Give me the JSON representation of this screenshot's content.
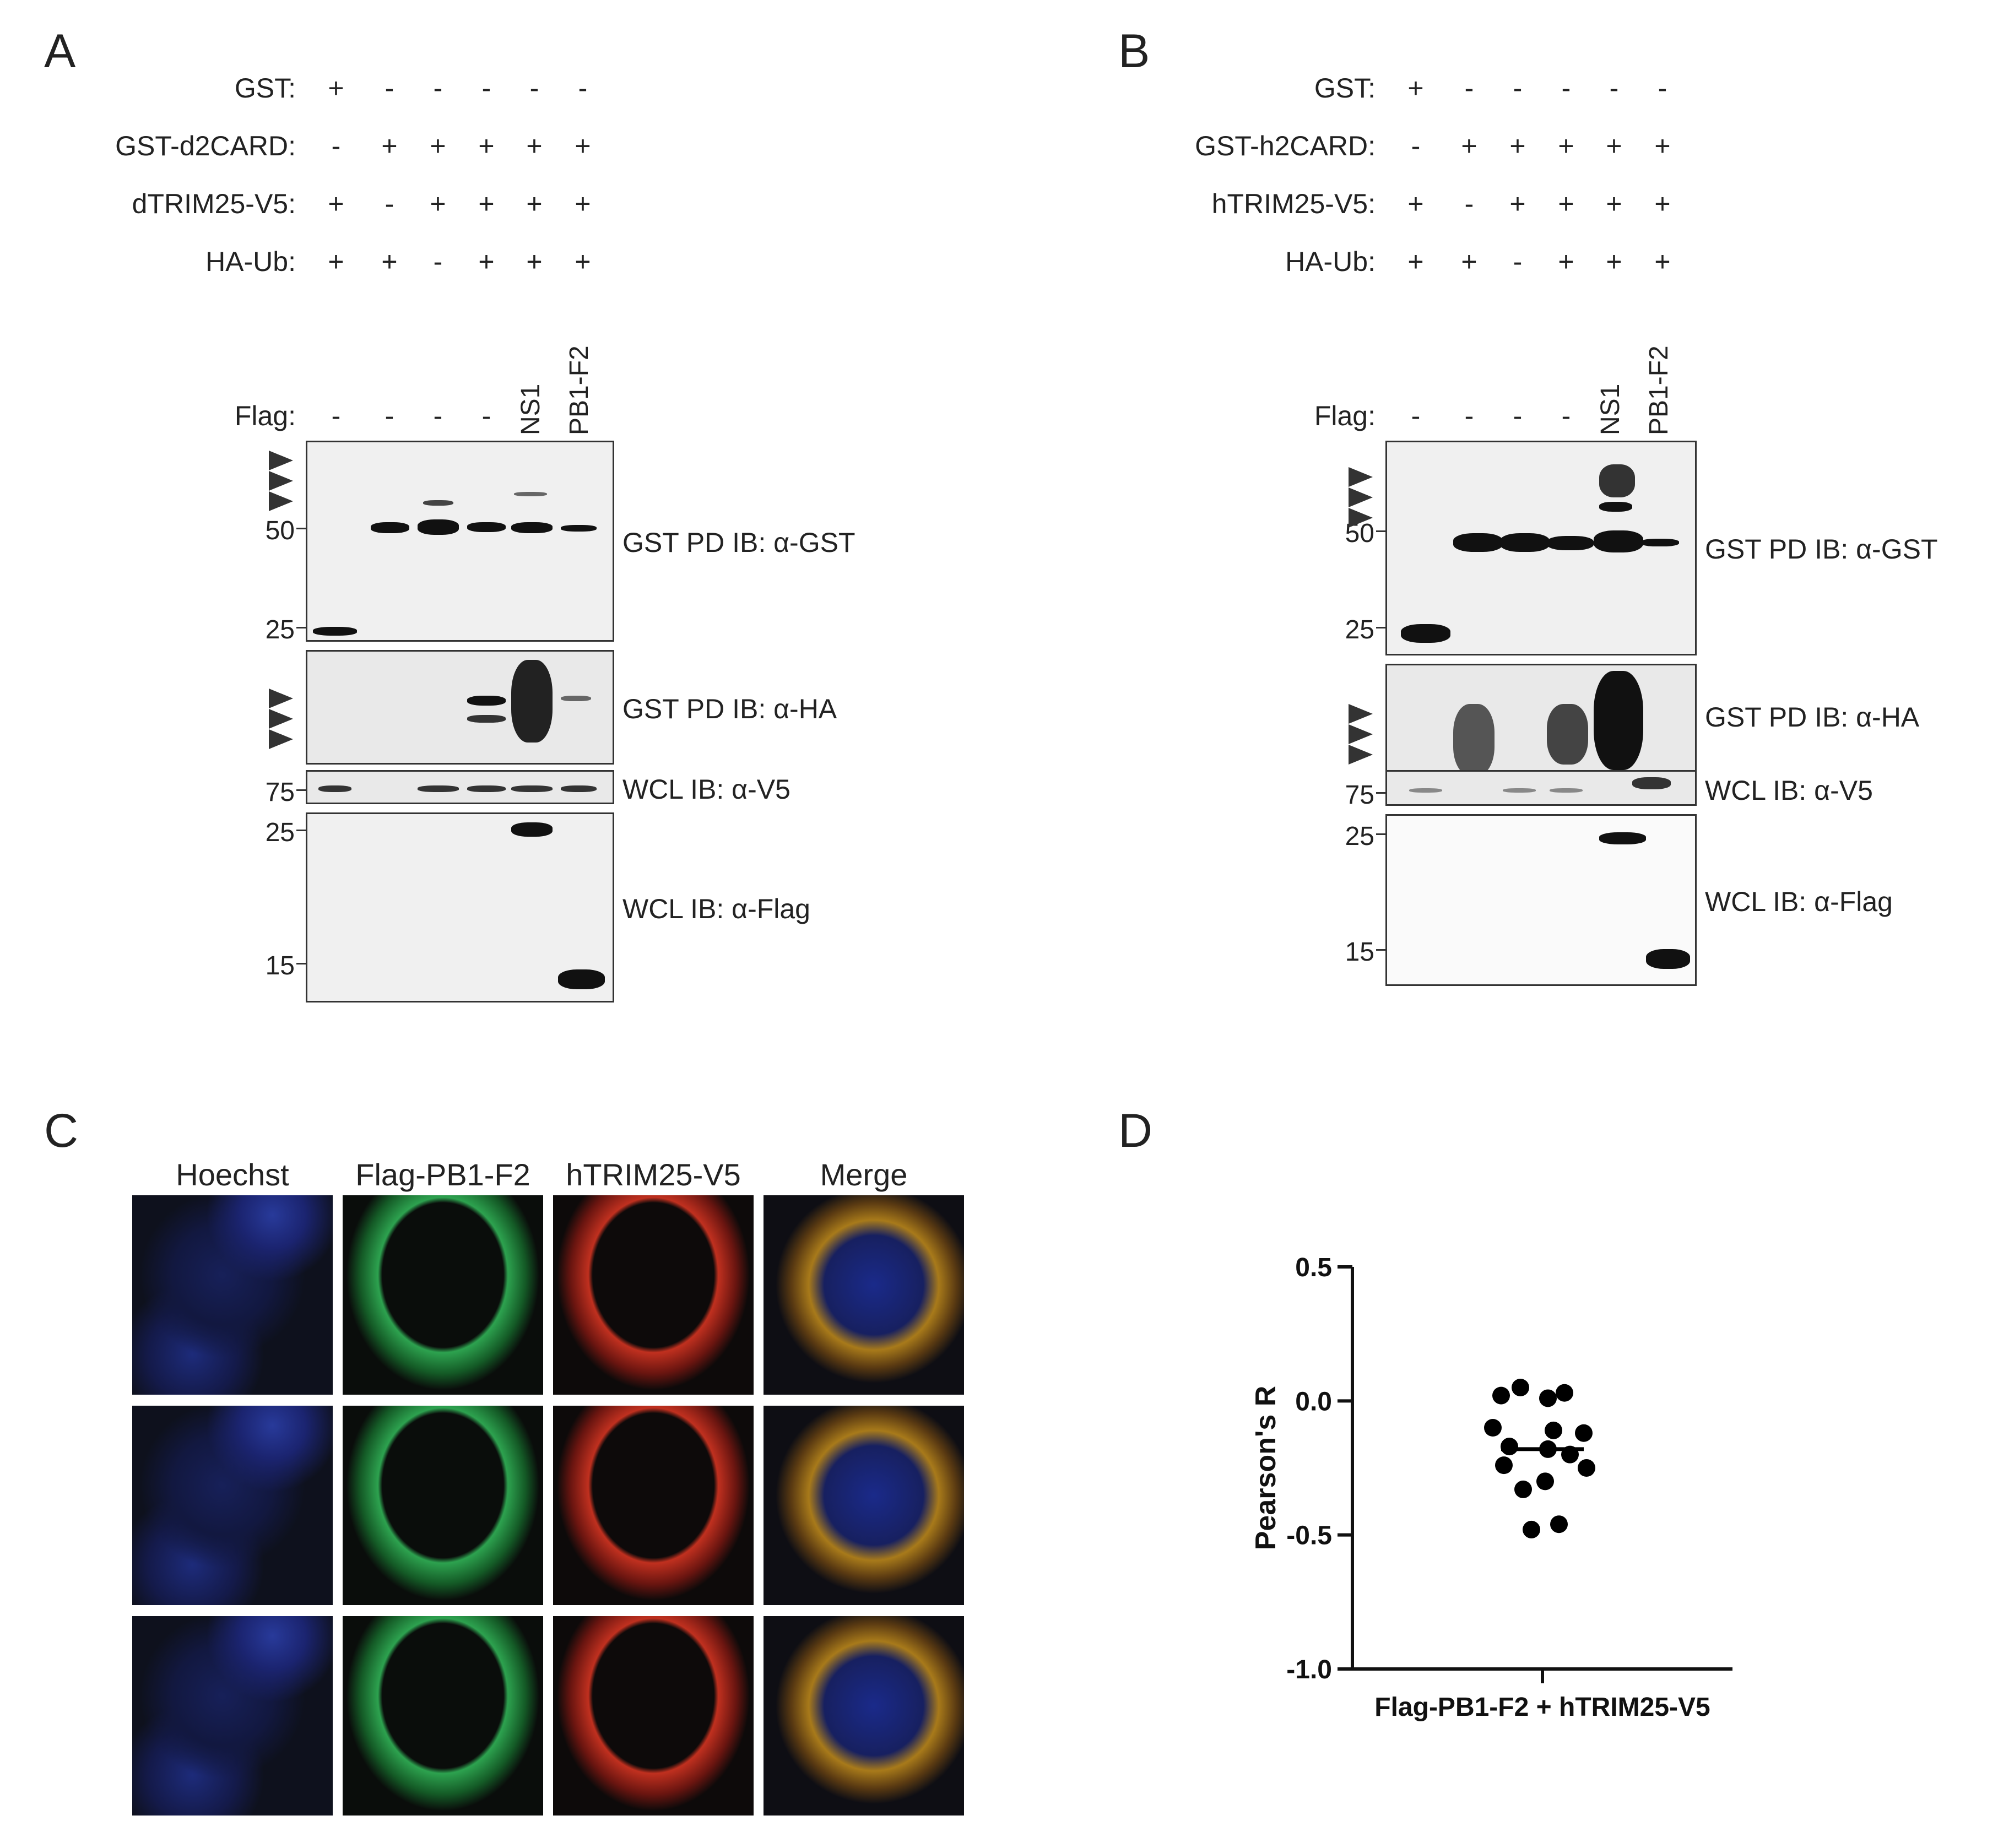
{
  "panels": {
    "A": "A",
    "B": "B",
    "C": "C",
    "D": "D"
  },
  "panelA": {
    "rows": [
      {
        "label": "GST:",
        "values": [
          "+",
          "-",
          "-",
          "-",
          "-",
          "-"
        ]
      },
      {
        "label": "GST-d2CARD:",
        "values": [
          "-",
          "+",
          "+",
          "+",
          "+",
          "+"
        ]
      },
      {
        "label": "dTRIM25-V5:",
        "values": [
          "+",
          "-",
          "+",
          "+",
          "+",
          "+"
        ]
      },
      {
        "label": "HA-Ub:",
        "values": [
          "+",
          "+",
          "-",
          "+",
          "+",
          "+"
        ]
      }
    ],
    "flag": {
      "label": "Flag:",
      "values": [
        "-",
        "-",
        "-",
        "-",
        "NS1",
        "PB1-F2"
      ]
    },
    "blots": [
      {
        "label": "GST PD  IB: α-GST",
        "mw": [
          "50",
          "25"
        ]
      },
      {
        "label": "GST PD  IB: α-HA",
        "mw": []
      },
      {
        "label": "WCL  IB: α-V5",
        "mw": [
          "75"
        ]
      },
      {
        "label": "WCL  IB: α-Flag",
        "mw": [
          "25",
          "15"
        ]
      }
    ]
  },
  "panelB": {
    "rows": [
      {
        "label": "GST:",
        "values": [
          "+",
          "-",
          "-",
          "-",
          "-",
          "-"
        ]
      },
      {
        "label": "GST-h2CARD:",
        "values": [
          "-",
          "+",
          "+",
          "+",
          "+",
          "+"
        ]
      },
      {
        "label": "hTRIM25-V5:",
        "values": [
          "+",
          "-",
          "+",
          "+",
          "+",
          "+"
        ]
      },
      {
        "label": "HA-Ub:",
        "values": [
          "+",
          "+",
          "-",
          "+",
          "+",
          "+"
        ]
      }
    ],
    "flag": {
      "label": "Flag:",
      "values": [
        "-",
        "-",
        "-",
        "-",
        "NS1",
        "PB1-F2"
      ]
    },
    "blots": [
      {
        "label": "GST PD  IB: α-GST",
        "mw": [
          "50",
          "25"
        ]
      },
      {
        "label": "GST PD  IB: α-HA",
        "mw": []
      },
      {
        "label": "WCL  IB: α-V5",
        "mw": [
          "75"
        ]
      },
      {
        "label": "WCL  IB: α-Flag",
        "mw": [
          "25",
          "15"
        ]
      }
    ]
  },
  "panelC": {
    "columns": [
      "Hoechst",
      "Flag-PB1-F2",
      "hTRIM25-V5",
      "Merge"
    ]
  },
  "chart_data": {
    "type": "scatter",
    "ylabel": "Pearson's R",
    "xlabel": "Flag-PB1-F2 + hTRIM25-V5",
    "ylim": [
      -1.0,
      0.5
    ],
    "yticks": [
      "0.5",
      "0.0",
      "-0.5",
      "-1.0"
    ],
    "points": [
      0.05,
      0.03,
      0.02,
      0.01,
      -0.1,
      -0.11,
      -0.12,
      -0.17,
      -0.18,
      -0.2,
      -0.24,
      -0.25,
      -0.3,
      -0.33,
      -0.46,
      -0.48
    ],
    "mean": -0.18
  }
}
